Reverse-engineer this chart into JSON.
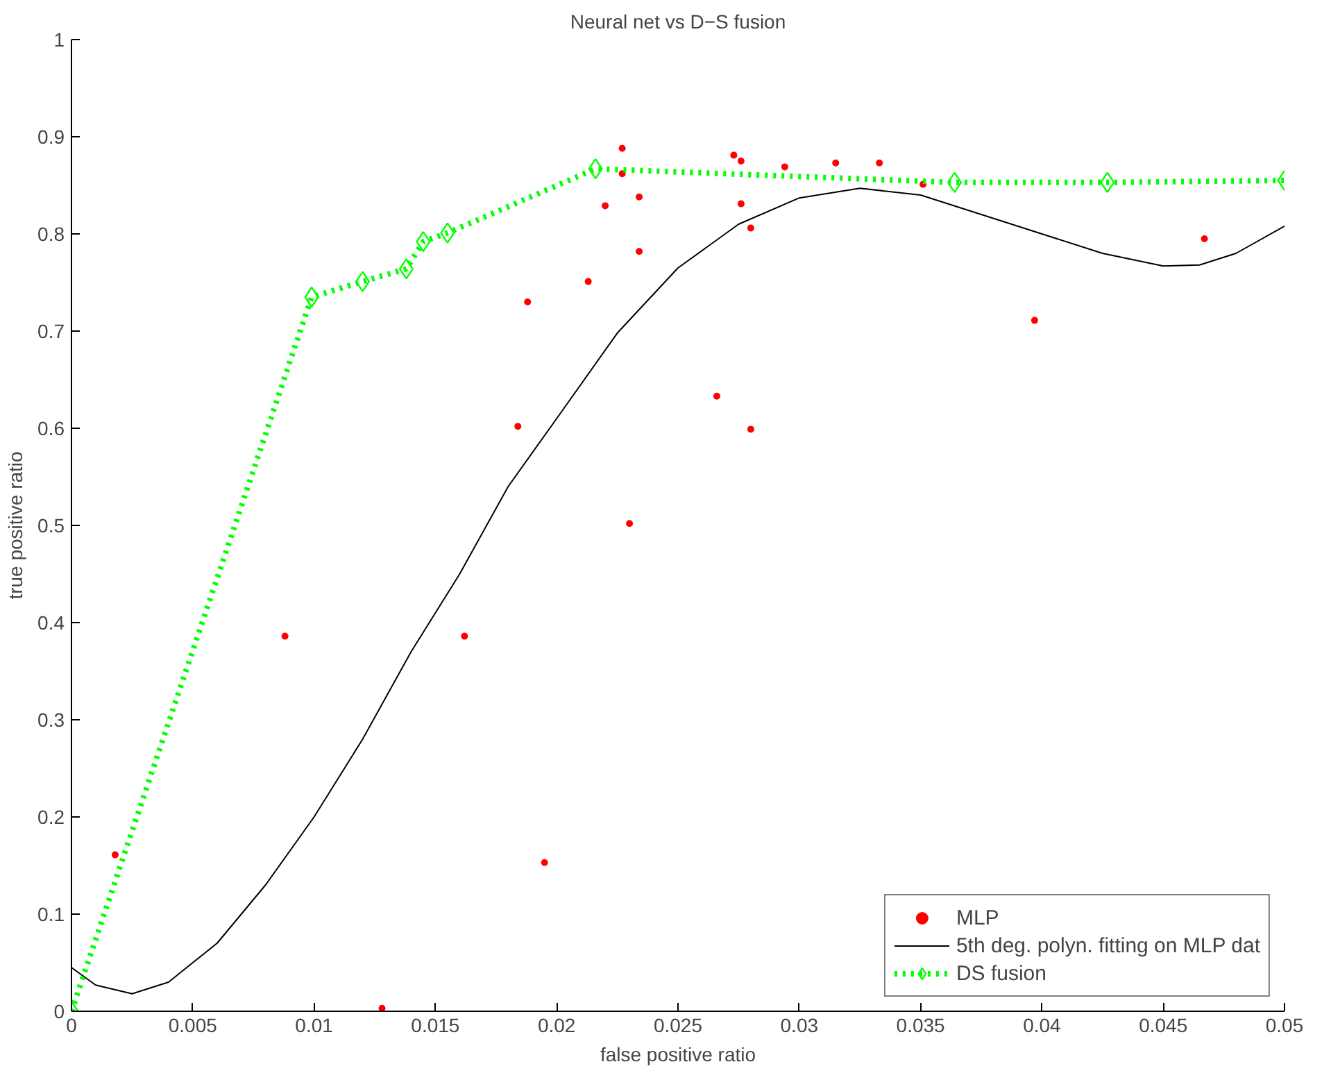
{
  "chart_data": {
    "type": "scatter",
    "title": "Neural net vs D−S fusion",
    "xlabel": "false positive ratio",
    "ylabel": "true positive ratio",
    "xlim": [
      0,
      0.05
    ],
    "xticks": [
      0,
      0.005,
      0.01,
      0.015,
      0.02,
      0.025,
      0.03,
      0.035,
      0.04,
      0.045,
      0.05
    ],
    "ylim": [
      0,
      1
    ],
    "yticks": [
      0,
      0.1,
      0.2,
      0.3,
      0.4,
      0.5,
      0.6,
      0.7,
      0.8,
      0.9,
      1
    ],
    "grid": false,
    "legend": "bottom right",
    "series": [
      {
        "name": "MLP",
        "marker": "circle",
        "color": "#ff0000",
        "x": [
          0.0018,
          0.0088,
          0.0128,
          0.0162,
          0.0184,
          0.0188,
          0.0195,
          0.0213,
          0.022,
          0.0227,
          0.0227,
          0.0234,
          0.0234,
          0.023,
          0.0273,
          0.0276,
          0.0294,
          0.0315,
          0.0333,
          0.0351,
          0.0276,
          0.028,
          0.0266,
          0.028,
          0.0397,
          0.0467
        ],
        "values": [
          0.161,
          0.386,
          0.003,
          0.386,
          0.602,
          0.73,
          0.153,
          0.751,
          0.829,
          0.888,
          0.862,
          0.838,
          0.782,
          0.502,
          0.881,
          0.875,
          0.869,
          0.873,
          0.873,
          0.851,
          0.831,
          0.806,
          0.633,
          0.599,
          0.711,
          0.795
        ]
      },
      {
        "name": "5th deg. polyn. fitting on MLP dat",
        "type": "line",
        "line_style": "solid",
        "marker": "none",
        "color": "#000000",
        "x": [
          0,
          0.001,
          0.0025,
          0.004,
          0.006,
          0.008,
          0.01,
          0.012,
          0.014,
          0.016,
          0.018,
          0.02,
          0.0225,
          0.025,
          0.0275,
          0.03,
          0.0325,
          0.035,
          0.0375,
          0.04,
          0.0425,
          0.045,
          0.0465,
          0.048,
          0.05
        ],
        "values": [
          0.045,
          0.027,
          0.018,
          0.03,
          0.07,
          0.13,
          0.2,
          0.28,
          0.37,
          0.45,
          0.54,
          0.61,
          0.698,
          0.765,
          0.81,
          0.837,
          0.847,
          0.84,
          0.82,
          0.8,
          0.78,
          0.767,
          0.768,
          0.78,
          0.808
        ]
      },
      {
        "name": "DS fusion",
        "type": "line",
        "line_style": "dotted",
        "marker": "diamond",
        "color": "#00ff00",
        "x": [
          0,
          0.0099,
          0.012,
          0.0138,
          0.0145,
          0.0155,
          0.0216,
          0.0364,
          0.0427,
          0.05
        ],
        "values": [
          0,
          0.735,
          0.751,
          0.764,
          0.792,
          0.801,
          0.867,
          0.853,
          0.853,
          0.855
        ]
      }
    ]
  }
}
